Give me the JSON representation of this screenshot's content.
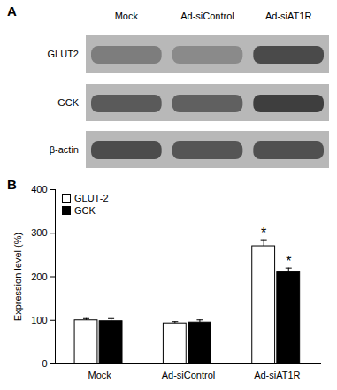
{
  "blot": {
    "panel_label": "A",
    "lanes": [
      "Mock",
      "Ad-siControl",
      "Ad-siAT1R"
    ],
    "rows": [
      "GLUT2",
      "GCK",
      "β-actin"
    ]
  },
  "chart_data": {
    "type": "bar",
    "panel_label": "B",
    "categories": [
      "Mock",
      "Ad-siControl",
      "Ad-siAT1R"
    ],
    "series": [
      {
        "name": "GLUT-2",
        "color": "#ffffff",
        "values": [
          100,
          93,
          270
        ],
        "errors": [
          4,
          4,
          15
        ]
      },
      {
        "name": "GCK",
        "color": "#000000",
        "values": [
          98,
          95,
          210
        ],
        "errors": [
          6,
          6,
          10
        ]
      }
    ],
    "ylabel": "Expression level (%)",
    "ylim": [
      0,
      400
    ],
    "yticks": [
      0,
      100,
      200,
      300,
      400
    ],
    "legend": "upper-left",
    "annotations": [
      {
        "category": "Ad-siAT1R",
        "series": "GLUT-2",
        "text": "*"
      },
      {
        "category": "Ad-siAT1R",
        "series": "GCK",
        "text": "*"
      }
    ]
  }
}
